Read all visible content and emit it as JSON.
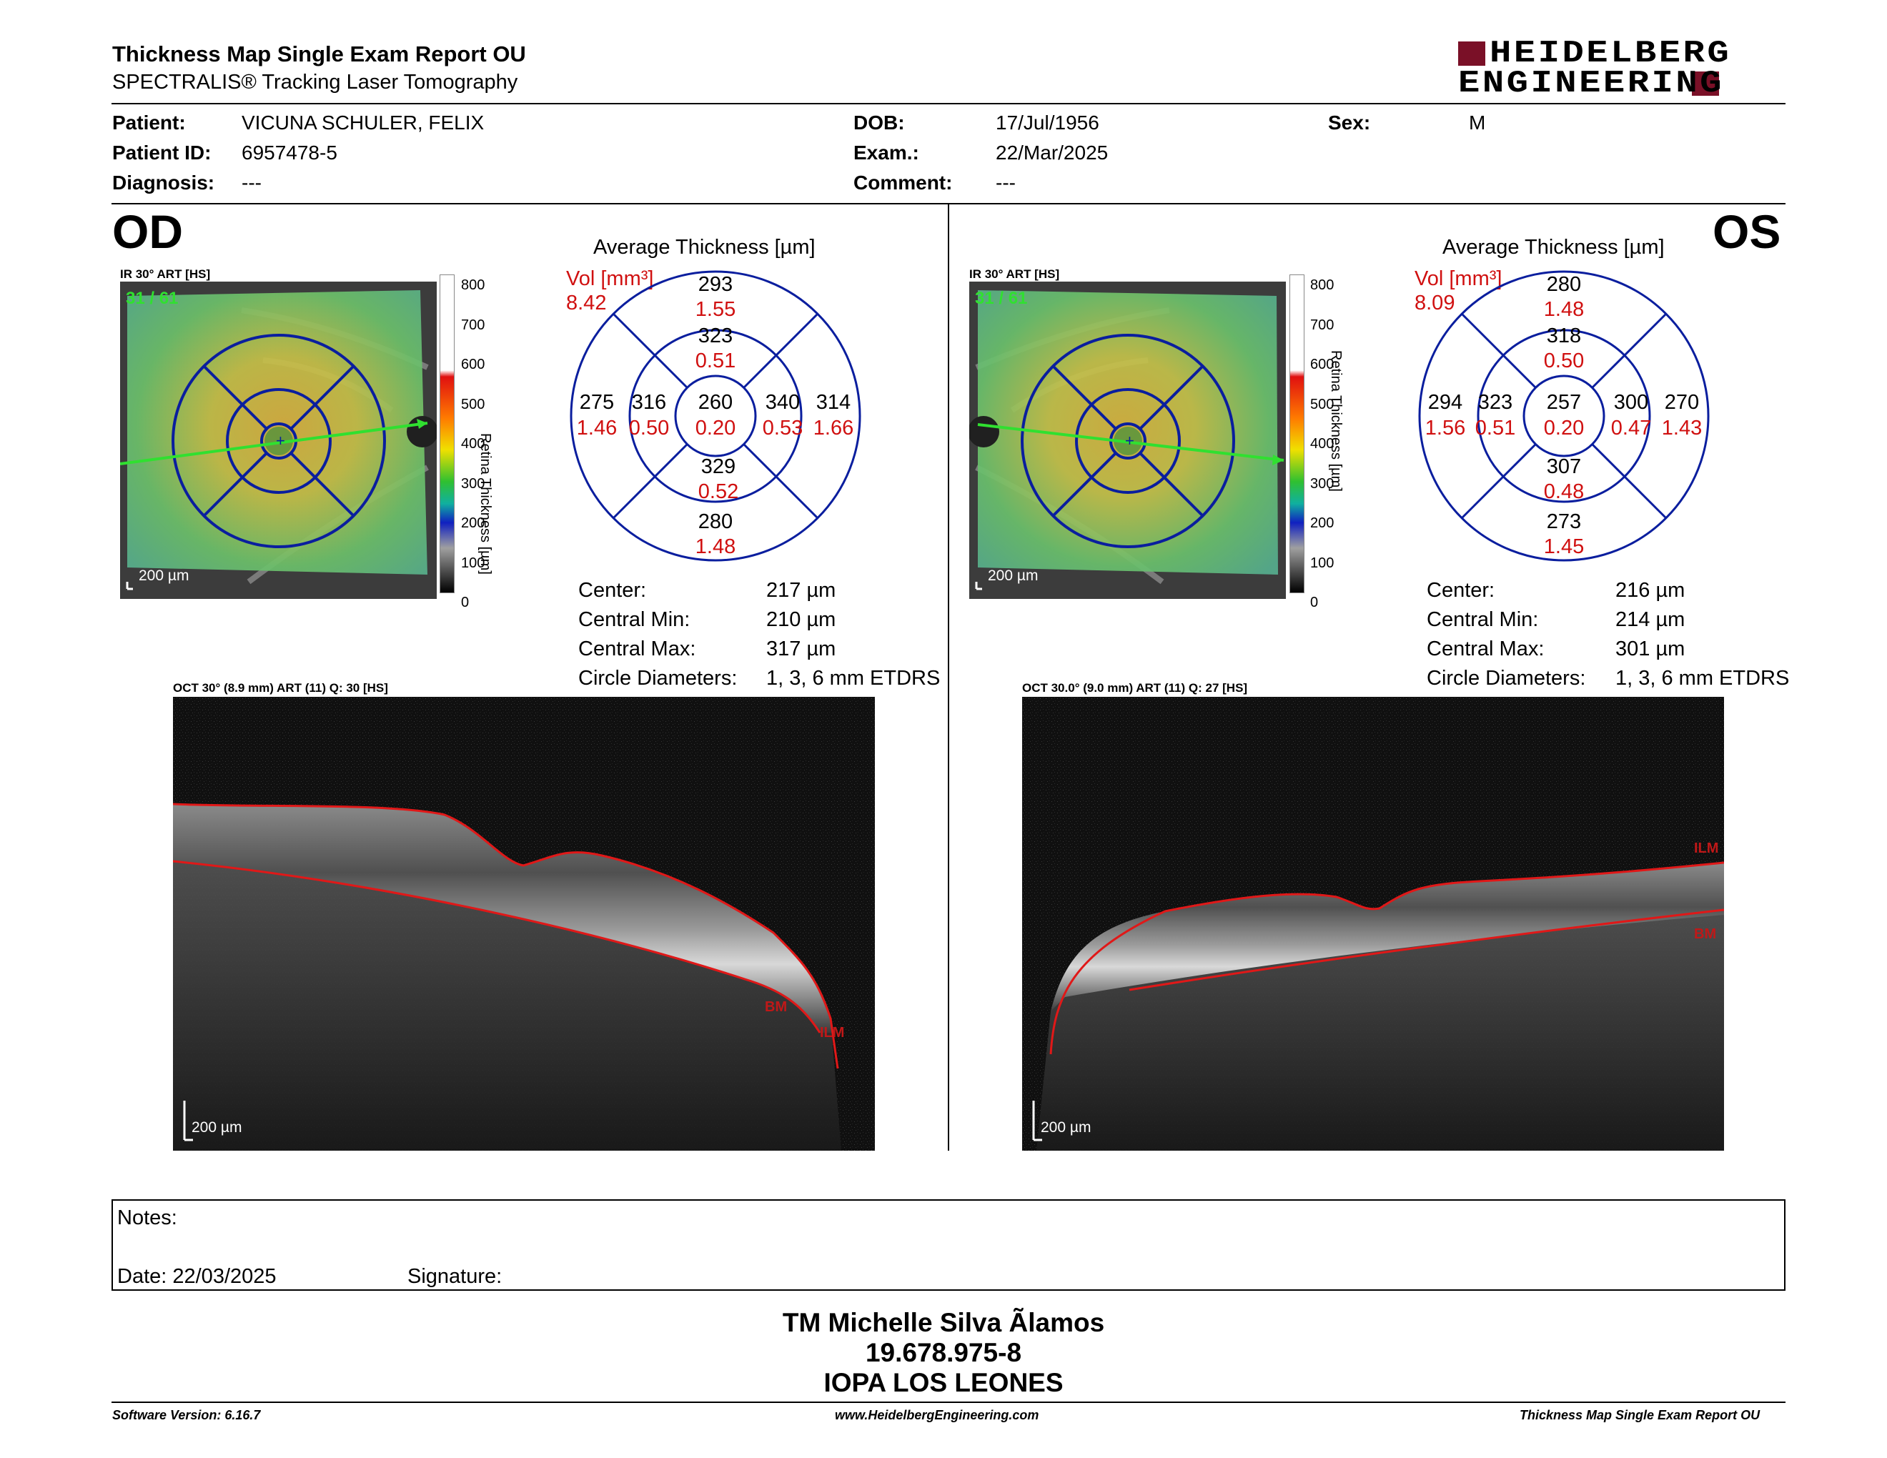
{
  "report": {
    "title": "Thickness Map Single Exam Report OU",
    "subtitle": "SPECTRALIS® Tracking Laser Tomography",
    "logo_line1": "HEIDELBERG",
    "logo_line2": "ENGINEERING"
  },
  "patient": {
    "patient_label": "Patient:",
    "patient_value": "VICUNA SCHULER, FELIX",
    "id_label": "Patient ID:",
    "id_value": "6957478-5",
    "diagnosis_label": "Diagnosis:",
    "diagnosis_value": "---",
    "dob_label": "DOB:",
    "dob_value": "17/Jul/1956",
    "exam_label": "Exam.:",
    "exam_value": "22/Mar/2025",
    "comment_label": "Comment:",
    "comment_value": "---",
    "sex_label": "Sex:",
    "sex_value": "M"
  },
  "od": {
    "eye": "OD",
    "ir_caption": "IR 30° ART [HS]",
    "frame_count": "31 / 61",
    "scale_label": "200 µm",
    "colorbar_ticks": [
      "800",
      "700",
      "600",
      "500",
      "400",
      "300",
      "200",
      "100",
      "0"
    ],
    "colorbar_label": "Retina Thickness [µm]",
    "avg_title": "Average Thickness [µm]",
    "vol_label": "Vol [mm³]",
    "vol_total": "8.42",
    "etdrs": {
      "center": "260",
      "center_vol": "0.20",
      "inner_top": "323",
      "inner_top_vol": "0.51",
      "inner_bottom": "329",
      "inner_bottom_vol": "0.52",
      "inner_left": "316",
      "inner_left_vol": "0.50",
      "inner_right": "340",
      "inner_right_vol": "0.53",
      "outer_top": "293",
      "outer_top_vol": "1.55",
      "outer_bottom": "280",
      "outer_bottom_vol": "1.48",
      "outer_left": "275",
      "outer_left_vol": "1.46",
      "outer_right": "314",
      "outer_right_vol": "1.66"
    },
    "stats": {
      "center_label": "Center:",
      "center_value": "217 µm",
      "min_label": "Central Min:",
      "min_value": "210 µm",
      "max_label": "Central Max:",
      "max_value": "317 µm",
      "diam_label": "Circle Diameters:",
      "diam_value": "1, 3, 6 mm ETDRS"
    },
    "oct_caption": "OCT 30° (8.9 mm) ART (11) Q: 30 [HS]",
    "oct_scale": "200 µm",
    "bm_label": "BM",
    "ilm_label": "ILM"
  },
  "os": {
    "eye": "OS",
    "ir_caption": "IR 30° ART [HS]",
    "frame_count": "31 / 61",
    "scale_label": "200 µm",
    "colorbar_ticks": [
      "800",
      "700",
      "600",
      "500",
      "400",
      "300",
      "200",
      "100",
      "0"
    ],
    "colorbar_label": "Retina Thickness [µm]",
    "avg_title": "Average Thickness [µm]",
    "vol_label": "Vol [mm³]",
    "vol_total": "8.09",
    "etdrs": {
      "center": "257",
      "center_vol": "0.20",
      "inner_top": "318",
      "inner_top_vol": "0.50",
      "inner_bottom": "307",
      "inner_bottom_vol": "0.48",
      "inner_left": "323",
      "inner_left_vol": "0.51",
      "inner_right": "300",
      "inner_right_vol": "0.47",
      "outer_top": "280",
      "outer_top_vol": "1.48",
      "outer_bottom": "273",
      "outer_bottom_vol": "1.45",
      "outer_left": "294",
      "outer_left_vol": "1.56",
      "outer_right": "270",
      "outer_right_vol": "1.43"
    },
    "stats": {
      "center_label": "Center:",
      "center_value": "216 µm",
      "min_label": "Central Min:",
      "min_value": "214 µm",
      "max_label": "Central Max:",
      "max_value": "301 µm",
      "diam_label": "Circle Diameters:",
      "diam_value": "1, 3, 6 mm ETDRS"
    },
    "oct_caption": "OCT 30.0° (9.0 mm) ART (11) Q: 27 [HS]",
    "oct_scale": "200 µm",
    "bm_label": "BM",
    "ilm_label": "ILM"
  },
  "notes": {
    "notes_label": "Notes:",
    "date_label": "Date: 22/03/2025",
    "signature_label": "Signature:"
  },
  "footer": {
    "name": "TM Michelle Silva Ãlamos",
    "id": "19.678.975-8",
    "institution": "IOPA LOS LEONES",
    "software": "Software Version: 6.16.7",
    "website": "www.HeidelbergEngineering.com",
    "report_name": "Thickness Map Single Exam Report OU"
  },
  "colors": {
    "volume_red": "#d01010",
    "etdrs_blue": "#0a1e9e",
    "brand_red": "#7a1027",
    "segmentation_red": "#e01818"
  }
}
